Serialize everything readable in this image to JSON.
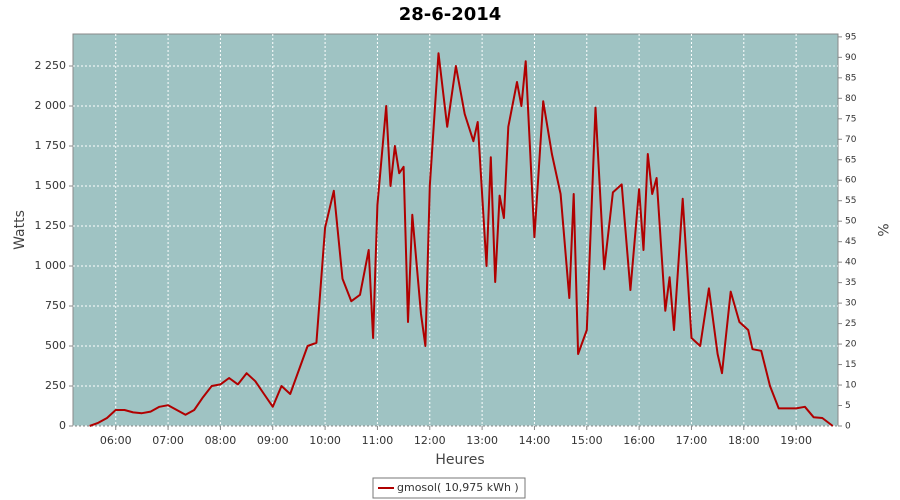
{
  "chart_data": {
    "type": "line",
    "title": "28-6-2014",
    "x_label": "Heures",
    "y_label": "Watts",
    "y2_label": "%",
    "x": [
      "05:30",
      "05:40",
      "05:50",
      "06:00",
      "06:10",
      "06:20",
      "06:30",
      "06:40",
      "06:50",
      "07:00",
      "07:10",
      "07:20",
      "07:30",
      "07:40",
      "07:50",
      "08:00",
      "08:10",
      "08:20",
      "08:30",
      "08:40",
      "08:50",
      "09:00",
      "09:10",
      "09:20",
      "09:30",
      "09:40",
      "09:50",
      "10:00",
      "10:10",
      "10:20",
      "10:30",
      "10:40",
      "10:50",
      "10:55",
      "11:00",
      "11:10",
      "11:15",
      "11:20",
      "11:25",
      "11:30",
      "11:35",
      "11:40",
      "11:50",
      "11:55",
      "12:00",
      "12:10",
      "12:20",
      "12:30",
      "12:40",
      "12:50",
      "12:55",
      "13:05",
      "13:10",
      "13:15",
      "13:20",
      "13:25",
      "13:30",
      "13:40",
      "13:45",
      "13:50",
      "14:00",
      "14:10",
      "14:20",
      "14:30",
      "14:40",
      "14:45",
      "14:50",
      "15:00",
      "15:10",
      "15:20",
      "15:30",
      "15:40",
      "15:50",
      "16:00",
      "16:05",
      "16:10",
      "16:15",
      "16:20",
      "16:30",
      "16:35",
      "16:40",
      "16:50",
      "17:00",
      "17:10",
      "17:20",
      "17:30",
      "17:35",
      "17:45",
      "17:55",
      "18:05",
      "18:10",
      "18:20",
      "18:30",
      "18:40",
      "19:00",
      "19:10",
      "19:20",
      "19:30",
      "19:42"
    ],
    "series": [
      {
        "name": "gmosol( 10,975 kWh )",
        "color": "#b00000",
        "values": [
          0,
          20,
          50,
          100,
          100,
          85,
          80,
          90,
          120,
          130,
          100,
          70,
          100,
          180,
          250,
          260,
          300,
          260,
          330,
          280,
          200,
          120,
          250,
          200,
          350,
          500,
          520,
          1240,
          1470,
          920,
          780,
          820,
          1100,
          550,
          1380,
          2000,
          1500,
          1750,
          1580,
          1620,
          650,
          1320,
          700,
          500,
          1500,
          2330,
          1870,
          2250,
          1950,
          1780,
          1900,
          1000,
          1680,
          900,
          1440,
          1300,
          1870,
          2150,
          2000,
          2280,
          1180,
          2030,
          1700,
          1450,
          800,
          1450,
          450,
          600,
          1990,
          980,
          1460,
          1510,
          850,
          1480,
          1100,
          1700,
          1450,
          1550,
          720,
          930,
          600,
          1420,
          550,
          500,
          860,
          450,
          330,
          840,
          650,
          600,
          480,
          470,
          250,
          110,
          110,
          120,
          55,
          50,
          0
        ]
      }
    ],
    "xlim": [
      "05:11",
      "19:48"
    ],
    "xticks": [
      "06:00",
      "07:00",
      "08:00",
      "09:00",
      "10:00",
      "11:00",
      "12:00",
      "13:00",
      "14:00",
      "15:00",
      "16:00",
      "17:00",
      "18:00",
      "19:00"
    ],
    "ylim": [
      0,
      2450
    ],
    "yticks": [
      0,
      250,
      500,
      750,
      {
        "value": 1000,
        "label": "1 000"
      },
      {
        "value": 1250,
        "label": "1 250"
      },
      {
        "value": 1500,
        "label": "1 500"
      },
      {
        "value": 1750,
        "label": "1 750"
      },
      {
        "value": 2000,
        "label": "2 000"
      },
      {
        "value": 2250,
        "label": "2 250"
      }
    ],
    "y2lim": [
      0,
      95.7
    ],
    "y2ticks": [
      0,
      5,
      10,
      15,
      20,
      25,
      30,
      35,
      40,
      45,
      50,
      55,
      60,
      65,
      70,
      75,
      80,
      85,
      90,
      95
    ],
    "grid": true,
    "plot_background": "#9fc3c3",
    "legend": "bottom"
  }
}
